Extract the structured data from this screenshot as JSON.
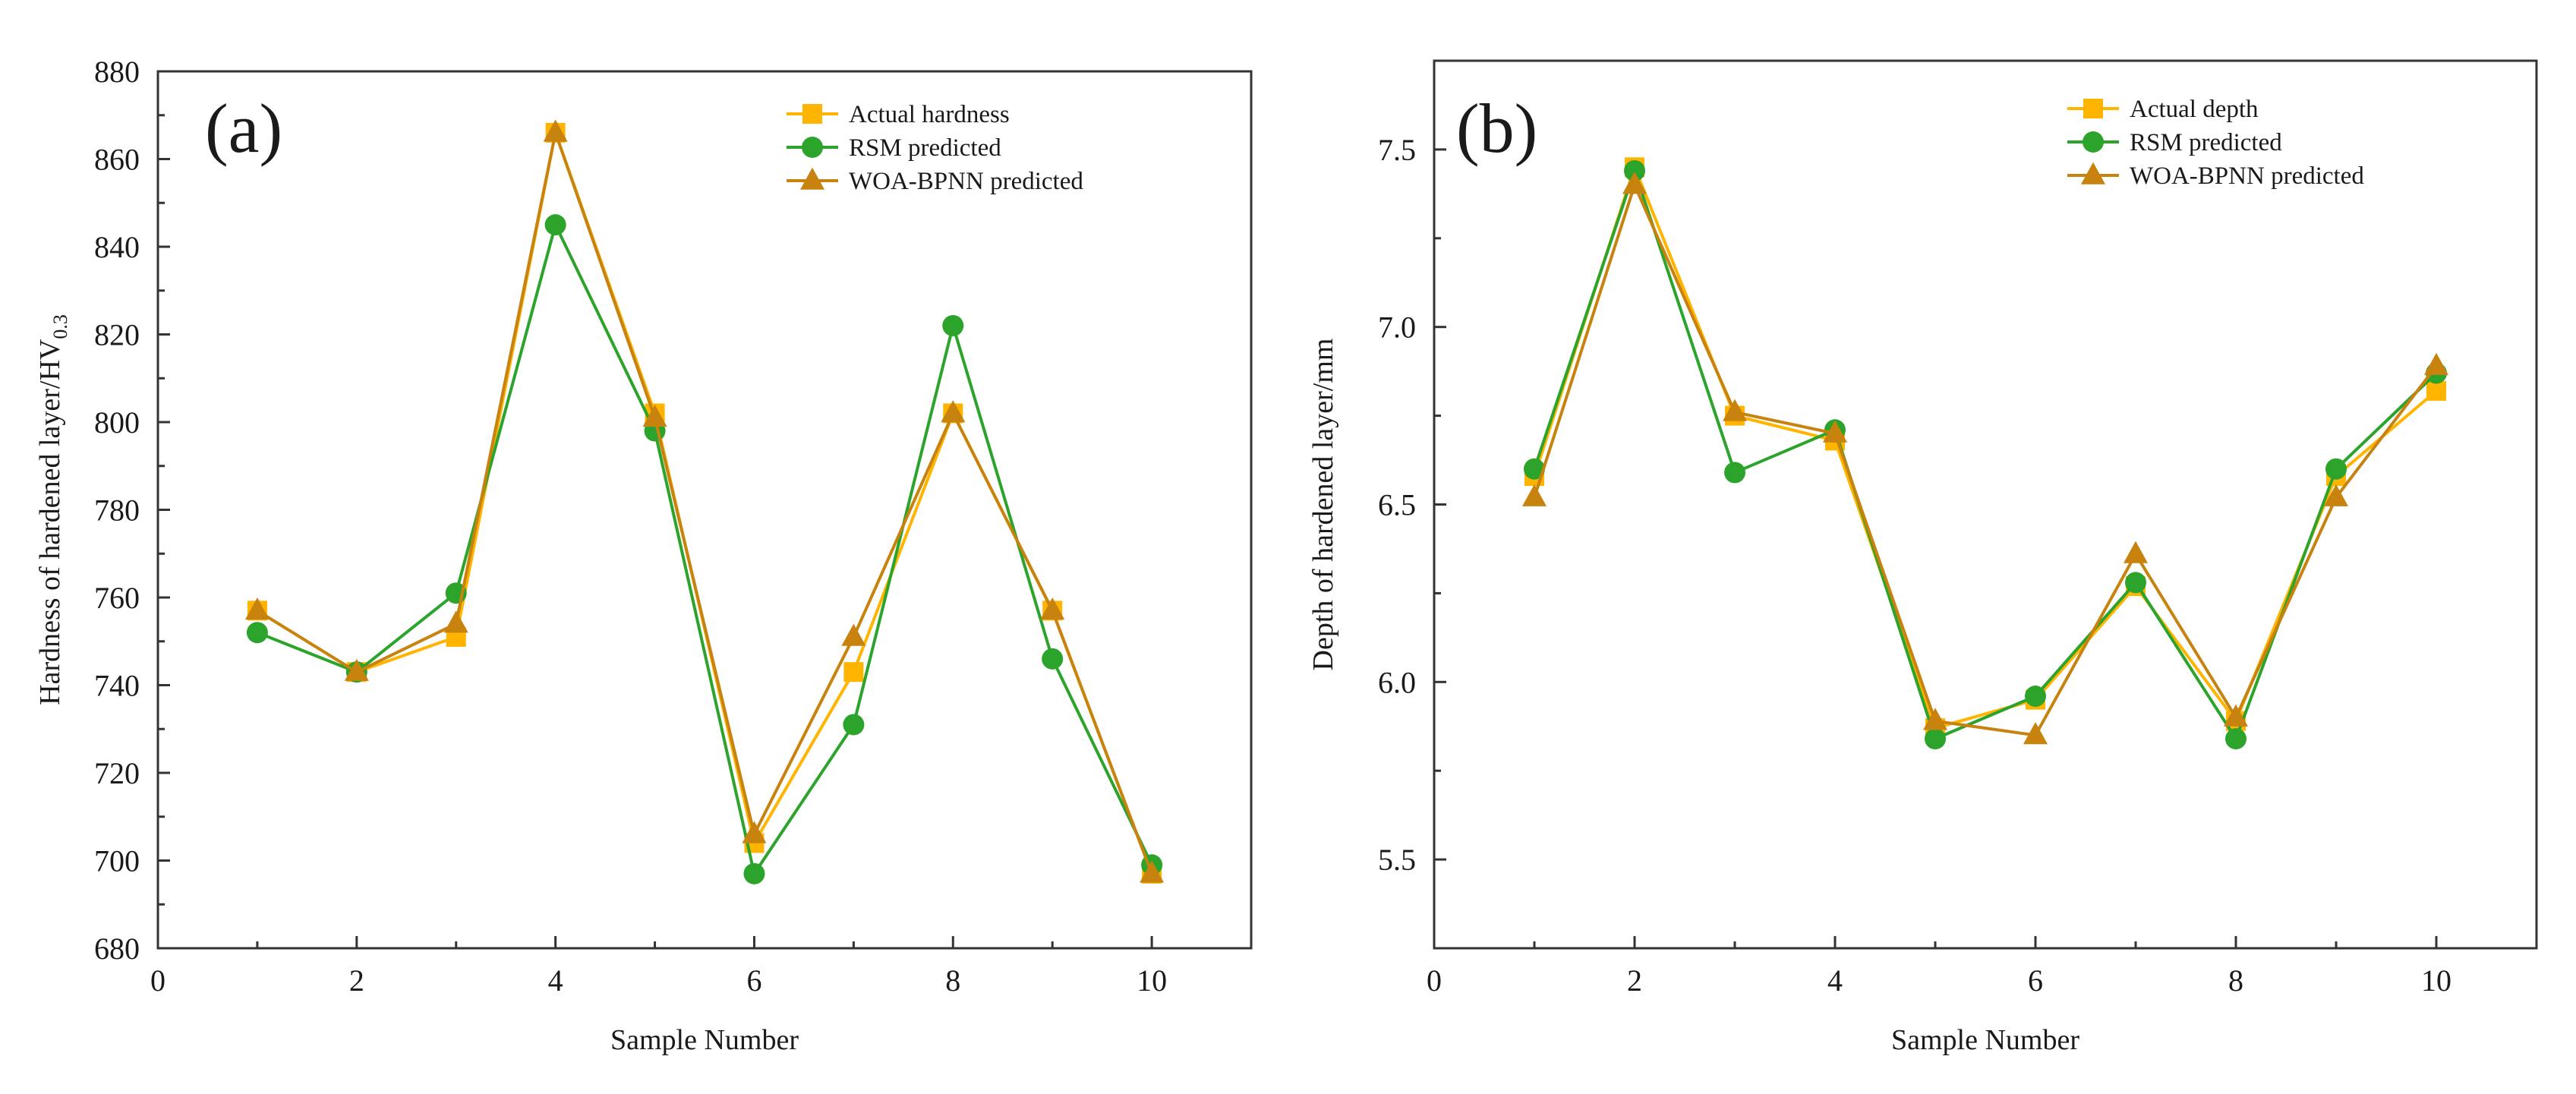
{
  "colors": {
    "actual": "#FFB400",
    "rsm": "#2CA42C",
    "woa": "#C8820E",
    "axis": "#333333"
  },
  "chart_data": [
    {
      "type": "line",
      "panel_label": "(a)",
      "xlabel": "Sample Number",
      "ylabel": "Hardness of hardened layer/HV",
      "ylabel_sub": "0.3",
      "xlim": [
        0,
        11
      ],
      "ylim": [
        680,
        880
      ],
      "xticks": [
        "0",
        "2",
        "4",
        "6",
        "8",
        "10"
      ],
      "yticks": [
        "680",
        "700",
        "720",
        "740",
        "760",
        "780",
        "800",
        "820",
        "840",
        "860",
        "880"
      ],
      "legend_position": "top-right",
      "x": [
        1,
        2,
        3,
        4,
        5,
        6,
        7,
        8,
        9,
        10
      ],
      "series": [
        {
          "name": "Actual hardness",
          "marker": "square",
          "color_key": "actual",
          "values": [
            757,
            743,
            751,
            866,
            802,
            704,
            743,
            802,
            757,
            697
          ]
        },
        {
          "name": "RSM predicted",
          "marker": "circle",
          "color_key": "rsm",
          "values": [
            752,
            743,
            761,
            845,
            798,
            697,
            731,
            822,
            746,
            699
          ]
        },
        {
          "name": "WOA-BPNN predicted",
          "marker": "triangle",
          "color_key": "woa",
          "values": [
            757,
            743,
            754,
            866,
            801,
            706,
            751,
            802,
            757,
            697
          ]
        }
      ]
    },
    {
      "type": "line",
      "panel_label": "(b)",
      "xlabel": "Sample Number",
      "ylabel": "Depth of hardened layer/mm",
      "ylabel_sub": "",
      "xlim": [
        0,
        11
      ],
      "ylim": [
        5.25,
        7.75
      ],
      "xticks": [
        "0",
        "2",
        "4",
        "6",
        "8",
        "10"
      ],
      "yticks": [
        "5.5",
        "6.0",
        "6.5",
        "7.0",
        "7.5"
      ],
      "legend_position": "top-right",
      "x": [
        1,
        2,
        3,
        4,
        5,
        6,
        7,
        8,
        9,
        10
      ],
      "series": [
        {
          "name": "Actual depth",
          "marker": "square",
          "color_key": "actual",
          "values": [
            6.58,
            7.45,
            6.75,
            6.68,
            5.87,
            5.95,
            6.27,
            5.89,
            6.58,
            6.82
          ]
        },
        {
          "name": "RSM predicted",
          "marker": "circle",
          "color_key": "rsm",
          "values": [
            6.6,
            7.44,
            6.59,
            6.71,
            5.84,
            5.96,
            6.28,
            5.84,
            6.6,
            6.87
          ]
        },
        {
          "name": "WOA-BPNN predicted",
          "marker": "triangle",
          "color_key": "woa",
          "values": [
            6.52,
            7.4,
            6.76,
            6.7,
            5.89,
            5.85,
            6.36,
            5.9,
            6.52,
            6.89
          ]
        }
      ]
    }
  ]
}
